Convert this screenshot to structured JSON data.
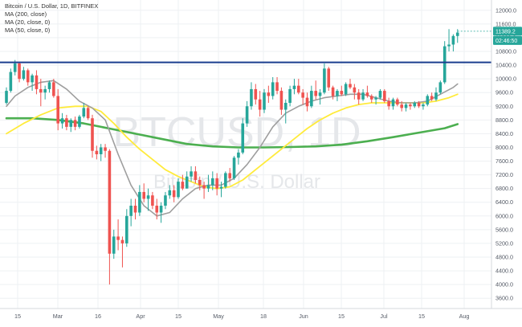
{
  "legend": {
    "title": "Bitcoin / U.S. Dollar, 1D, BITFINEX",
    "ma200": "MA (200, close)",
    "ma20": "MA (20, close, 0)",
    "ma50": "MA (50, close, 0)"
  },
  "watermark": {
    "symbol": "BTCUSD, 1D",
    "name": "Bitcoin / U.S. Dollar"
  },
  "badges": {
    "price": "11389.2",
    "countdown": "02:46:50"
  },
  "colors": {
    "up": "#26a69a",
    "down": "#ef5350",
    "ma200": "#4caf50",
    "ma20": "#9e9e9e",
    "ma50": "#ffeb3b",
    "resistance": "#1a3d8f",
    "price_badge": "#26a69a"
  },
  "chart_data": {
    "type": "candlestick",
    "x_ticks": [
      "15",
      "Mar",
      "16",
      "Apr",
      "15",
      "May",
      "18",
      "Jun",
      "15",
      "Jul",
      "15",
      "Aug"
    ],
    "y_ticks": [
      3600,
      4000,
      4400,
      4800,
      5200,
      5600,
      6000,
      6400,
      6800,
      7200,
      7600,
      8000,
      8400,
      8800,
      9200,
      9600,
      10000,
      10400,
      10800,
      11200,
      11600,
      12000
    ],
    "ylim": [
      3300,
      12300
    ],
    "resistance_level": 10480,
    "last_price": 11389.2,
    "candles": [
      [
        9300,
        9750,
        9250,
        9650
      ],
      [
        9650,
        10300,
        9600,
        10200
      ],
      [
        10200,
        10550,
        10100,
        10450
      ],
      [
        10450,
        10500,
        9900,
        10000
      ],
      [
        10000,
        10350,
        9950,
        10250
      ],
      [
        10250,
        10300,
        9800,
        9900
      ],
      [
        9900,
        10150,
        9650,
        10100
      ],
      [
        10100,
        10250,
        9550,
        9700
      ],
      [
        9700,
        10000,
        9200,
        9600
      ],
      [
        9600,
        9800,
        9400,
        9700
      ],
      [
        9700,
        9950,
        9600,
        9900
      ],
      [
        9900,
        10000,
        9450,
        9500
      ],
      [
        9500,
        9700,
        8500,
        8700
      ],
      [
        8700,
        9000,
        8550,
        8850
      ],
      [
        8850,
        8950,
        8500,
        8600
      ],
      [
        8600,
        8850,
        8450,
        8800
      ],
      [
        8800,
        8900,
        8500,
        8600
      ],
      [
        8600,
        8950,
        8550,
        8900
      ],
      [
        8900,
        9300,
        8850,
        9150
      ],
      [
        9150,
        9200,
        8800,
        8850
      ],
      [
        8850,
        8950,
        7700,
        7900
      ],
      [
        7900,
        8050,
        7650,
        7800
      ],
      [
        7800,
        8100,
        7600,
        8000
      ],
      [
        8000,
        8100,
        7700,
        7900
      ],
      [
        7900,
        7950,
        4000,
        4900
      ],
      [
        4900,
        5600,
        4750,
        5400
      ],
      [
        5400,
        5900,
        5000,
        5300
      ],
      [
        5300,
        5400,
        4500,
        5200
      ],
      [
        5200,
        6200,
        5100,
        6000
      ],
      [
        6000,
        6500,
        5700,
        6300
      ],
      [
        6300,
        6500,
        5900,
        6100
      ],
      [
        6100,
        6900,
        6000,
        6700
      ],
      [
        6700,
        6950,
        6400,
        6500
      ],
      [
        6500,
        6800,
        6150,
        6600
      ],
      [
        6600,
        6700,
        6200,
        6300
      ],
      [
        6300,
        6500,
        5900,
        6100
      ],
      [
        6100,
        6400,
        5800,
        6300
      ],
      [
        6300,
        6700,
        6200,
        6600
      ],
      [
        6600,
        6900,
        6500,
        6750
      ],
      [
        6750,
        6900,
        6400,
        6550
      ],
      [
        6550,
        7100,
        6500,
        7000
      ],
      [
        7000,
        7200,
        6750,
        6800
      ],
      [
        6800,
        7300,
        6800,
        7150
      ],
      [
        7150,
        7450,
        7000,
        7300
      ],
      [
        7300,
        7450,
        6950,
        7050
      ],
      [
        7050,
        7150,
        6750,
        6900
      ],
      [
        6900,
        7000,
        6500,
        6800
      ],
      [
        6800,
        7200,
        6700,
        6900
      ],
      [
        6900,
        7300,
        6750,
        7100
      ],
      [
        7100,
        7250,
        6600,
        6800
      ],
      [
        6800,
        7000,
        6550,
        6850
      ],
      [
        6850,
        7300,
        6800,
        7250
      ],
      [
        7250,
        7400,
        7000,
        7100
      ],
      [
        7100,
        7750,
        7050,
        7700
      ],
      [
        7700,
        7950,
        7500,
        7850
      ],
      [
        7850,
        8850,
        7800,
        8700
      ],
      [
        8700,
        9350,
        8600,
        9200
      ],
      [
        9200,
        9900,
        9100,
        9700
      ],
      [
        9700,
        9850,
        9250,
        9400
      ],
      [
        9400,
        9650,
        8900,
        9100
      ],
      [
        9100,
        9700,
        9000,
        9600
      ],
      [
        9600,
        9800,
        9300,
        9500
      ],
      [
        9500,
        10050,
        9400,
        9900
      ],
      [
        9900,
        10050,
        9550,
        9650
      ],
      [
        9650,
        9750,
        8950,
        9100
      ],
      [
        9100,
        9400,
        8700,
        9300
      ],
      [
        9300,
        9800,
        9200,
        9700
      ],
      [
        9700,
        10000,
        9550,
        9800
      ],
      [
        9800,
        10000,
        9550,
        9600
      ],
      [
        9600,
        9700,
        9250,
        9450
      ],
      [
        9450,
        9600,
        9050,
        9200
      ],
      [
        9200,
        9800,
        9150,
        9650
      ],
      [
        9650,
        9950,
        9400,
        9500
      ],
      [
        9500,
        9700,
        9250,
        9600
      ],
      [
        9600,
        10450,
        9550,
        10300
      ],
      [
        10300,
        10350,
        9650,
        9750
      ],
      [
        9750,
        9800,
        9400,
        9500
      ],
      [
        9500,
        9700,
        9350,
        9650
      ],
      [
        9650,
        9800,
        9500,
        9550
      ],
      [
        9550,
        9900,
        9500,
        9850
      ],
      [
        9850,
        10000,
        9700,
        9750
      ],
      [
        9750,
        9850,
        9400,
        9600
      ],
      [
        9600,
        9700,
        9250,
        9400
      ],
      [
        9400,
        9700,
        9350,
        9600
      ],
      [
        9600,
        9800,
        9450,
        9500
      ],
      [
        9500,
        9550,
        9300,
        9400
      ],
      [
        9400,
        9500,
        9250,
        9450
      ],
      [
        9450,
        9700,
        9400,
        9650
      ],
      [
        9650,
        9700,
        9300,
        9350
      ],
      [
        9350,
        9450,
        9100,
        9200
      ],
      [
        9200,
        9450,
        9100,
        9400
      ],
      [
        9400,
        9450,
        9200,
        9250
      ],
      [
        9250,
        9350,
        9050,
        9150
      ],
      [
        9150,
        9300,
        9050,
        9250
      ],
      [
        9250,
        9300,
        9100,
        9200
      ],
      [
        9200,
        9350,
        9150,
        9300
      ],
      [
        9300,
        9350,
        9150,
        9200
      ],
      [
        9200,
        9300,
        9100,
        9250
      ],
      [
        9250,
        9550,
        9200,
        9500
      ],
      [
        9500,
        9600,
        9350,
        9400
      ],
      [
        9400,
        9750,
        9350,
        9600
      ],
      [
        9600,
        9950,
        9550,
        9900
      ],
      [
        9900,
        11100,
        9850,
        10950
      ],
      [
        10950,
        11450,
        10800,
        11000
      ],
      [
        11000,
        11300,
        10800,
        11250
      ],
      [
        11250,
        11450,
        11050,
        11350
      ]
    ],
    "ma20": [
      [
        0,
        9200
      ],
      [
        2,
        9500
      ],
      [
        5,
        9750
      ],
      [
        8,
        9900
      ],
      [
        11,
        9950
      ],
      [
        14,
        9700
      ],
      [
        17,
        9350
      ],
      [
        20,
        9150
      ],
      [
        23,
        8800
      ],
      [
        26,
        7800
      ],
      [
        29,
        6900
      ],
      [
        32,
        6300
      ],
      [
        35,
        6000
      ],
      [
        38,
        6100
      ],
      [
        41,
        6500
      ],
      [
        44,
        6800
      ],
      [
        47,
        6900
      ],
      [
        50,
        6900
      ],
      [
        53,
        7100
      ],
      [
        56,
        7500
      ],
      [
        59,
        8000
      ],
      [
        62,
        8600
      ],
      [
        65,
        9000
      ],
      [
        68,
        9200
      ],
      [
        71,
        9350
      ],
      [
        74,
        9450
      ],
      [
        77,
        9500
      ],
      [
        80,
        9550
      ],
      [
        83,
        9550
      ],
      [
        86,
        9450
      ],
      [
        89,
        9350
      ],
      [
        92,
        9300
      ],
      [
        95,
        9300
      ],
      [
        98,
        9350
      ],
      [
        101,
        9550
      ],
      [
        104,
        9750
      ],
      [
        105,
        9850
      ]
    ],
    "ma50": [
      [
        0,
        8400
      ],
      [
        4,
        8700
      ],
      [
        8,
        8950
      ],
      [
        12,
        9150
      ],
      [
        16,
        9200
      ],
      [
        19,
        9200
      ],
      [
        22,
        9050
      ],
      [
        25,
        8700
      ],
      [
        28,
        8300
      ],
      [
        31,
        7950
      ],
      [
        34,
        7650
      ],
      [
        37,
        7350
      ],
      [
        40,
        7150
      ],
      [
        43,
        7000
      ],
      [
        46,
        6850
      ],
      [
        49,
        6800
      ],
      [
        52,
        6850
      ],
      [
        55,
        7050
      ],
      [
        58,
        7350
      ],
      [
        61,
        7650
      ],
      [
        64,
        7950
      ],
      [
        67,
        8250
      ],
      [
        70,
        8550
      ],
      [
        73,
        8800
      ],
      [
        76,
        9000
      ],
      [
        79,
        9150
      ],
      [
        82,
        9250
      ],
      [
        85,
        9300
      ],
      [
        88,
        9300
      ],
      [
        91,
        9300
      ],
      [
        94,
        9300
      ],
      [
        97,
        9300
      ],
      [
        100,
        9350
      ],
      [
        103,
        9450
      ],
      [
        105,
        9550
      ]
    ],
    "ma200": [
      [
        0,
        8850
      ],
      [
        6,
        8850
      ],
      [
        12,
        8800
      ],
      [
        18,
        8700
      ],
      [
        24,
        8550
      ],
      [
        30,
        8400
      ],
      [
        36,
        8250
      ],
      [
        42,
        8100
      ],
      [
        48,
        8030
      ],
      [
        54,
        8000
      ],
      [
        60,
        8000
      ],
      [
        66,
        8010
      ],
      [
        72,
        8030
      ],
      [
        78,
        8080
      ],
      [
        84,
        8180
      ],
      [
        90,
        8300
      ],
      [
        96,
        8430
      ],
      [
        102,
        8560
      ],
      [
        105,
        8680
      ]
    ]
  }
}
